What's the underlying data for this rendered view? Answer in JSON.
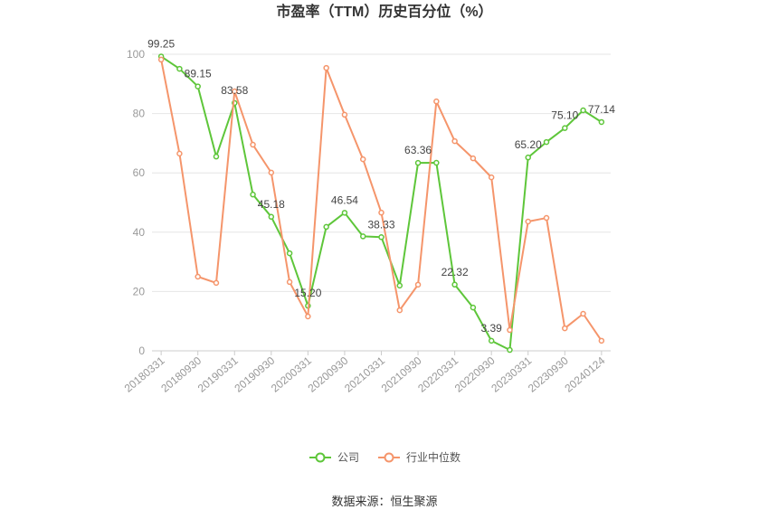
{
  "source": "数据来源：恒生聚源",
  "chart_data": {
    "type": "line",
    "title": "市盈率（TTM）历史百分位（%）",
    "categories": [
      "20180331",
      "",
      "20180930",
      "",
      "20190331",
      "",
      "20190930",
      "",
      "20200331",
      "",
      "20200930",
      "",
      "20210331",
      "",
      "20210930",
      "",
      "20220331",
      "",
      "20220930",
      "",
      "20230331",
      "",
      "20230930",
      "",
      "20240124"
    ],
    "y_ticks": [
      0,
      20,
      40,
      60,
      80,
      100
    ],
    "ylim": [
      0,
      100
    ],
    "grid": true,
    "legend_position": "bottom",
    "series": [
      {
        "name": "公司",
        "color": "#5ec63a",
        "values": [
          99.25,
          95.1,
          89.15,
          65.5,
          83.58,
          52.7,
          45.18,
          32.9,
          15.2,
          41.8,
          46.54,
          38.6,
          38.33,
          22.0,
          63.36,
          63.4,
          22.32,
          14.6,
          3.39,
          0.3,
          65.2,
          70.4,
          75.1,
          81.1,
          77.14
        ],
        "data_labels": [
          "99.25",
          "",
          "89.15",
          "",
          "83.58",
          "",
          "45.18",
          "",
          "15.20",
          "",
          "46.54",
          "",
          "38.33",
          "",
          "63.36",
          "",
          "22.32",
          "",
          "3.39",
          "",
          "65.20",
          "",
          "75.10",
          "",
          "77.14"
        ]
      },
      {
        "name": "行业中位数",
        "color": "#f5956b",
        "values": [
          98.2,
          66.5,
          25.0,
          22.9,
          87.5,
          69.5,
          60.1,
          23.2,
          11.6,
          95.4,
          79.6,
          64.6,
          46.6,
          13.7,
          22.3,
          84.1,
          70.7,
          64.9,
          58.5,
          7.0,
          43.6,
          44.8,
          7.6,
          12.5,
          3.4
        ]
      }
    ]
  }
}
